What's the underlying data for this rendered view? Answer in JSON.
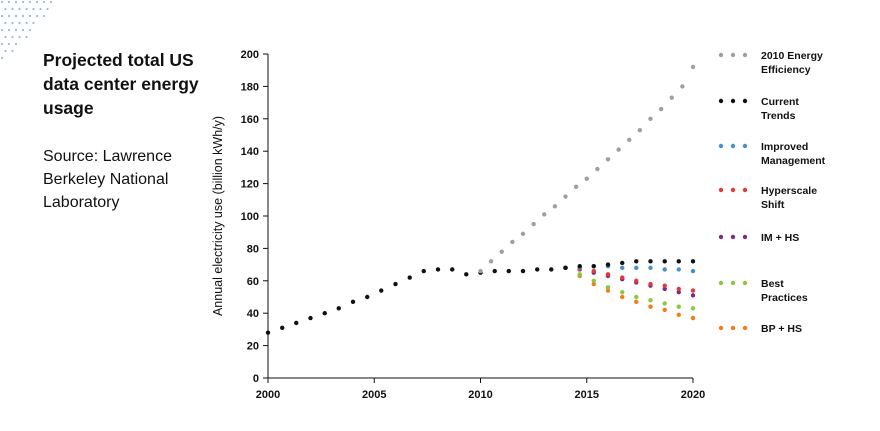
{
  "title": "Projected total US data center energy usage",
  "source": "Source: Lawrence Berkeley National Laboratory",
  "chart_data": {
    "type": "scatter",
    "ylabel": "Annual electricity use (billion kWh/y)",
    "xlabel": "",
    "xlim": [
      2000,
      2020
    ],
    "ylim": [
      0,
      200
    ],
    "xticks": [
      2000,
      2005,
      2010,
      2015,
      2020
    ],
    "yticks": [
      0,
      20,
      40,
      60,
      80,
      100,
      120,
      140,
      160,
      180,
      200
    ],
    "grid": false,
    "legend": "right",
    "series": [
      {
        "name": "2010 Energy Efficiency",
        "color": "#a0a0a0",
        "x": [
          2010,
          2010.5,
          2011,
          2011.5,
          2012,
          2012.5,
          2013,
          2013.5,
          2014,
          2014.5,
          2015,
          2015.5,
          2016,
          2016.5,
          2017,
          2017.5,
          2018,
          2018.5,
          2019,
          2019.5,
          2020
        ],
        "y": [
          66,
          72,
          78,
          84,
          89,
          95,
          101,
          106,
          112,
          118,
          123,
          129,
          135,
          141,
          147,
          153,
          160,
          166,
          173,
          180,
          192
        ]
      },
      {
        "name": "Current Trends",
        "color": "#111111",
        "x": [
          2000,
          2000.67,
          2001.33,
          2002,
          2002.67,
          2003.33,
          2004,
          2004.67,
          2005.33,
          2006,
          2006.67,
          2007.33,
          2008,
          2008.67,
          2009.33,
          2010,
          2010.67,
          2011.33,
          2012,
          2012.67,
          2013.33,
          2014,
          2014.67,
          2015.33,
          2016,
          2016.67,
          2017.33,
          2018,
          2018.67,
          2019.33,
          2020
        ],
        "y": [
          28,
          31,
          34,
          37,
          40,
          43,
          47,
          50,
          54,
          58,
          62,
          66,
          67,
          67,
          64,
          65,
          66,
          66,
          66,
          67,
          67,
          68,
          69,
          69,
          70,
          71,
          72,
          72,
          72,
          72,
          72
        ]
      },
      {
        "name": "Improved Management",
        "color": "#4a90c8",
        "x": [
          2014,
          2014.67,
          2015.33,
          2016,
          2016.67,
          2017.33,
          2018,
          2018.67,
          2019.33,
          2020
        ],
        "y": [
          68,
          68,
          69,
          69,
          68,
          68,
          68,
          67,
          67,
          66
        ]
      },
      {
        "name": "Hyperscale Shift",
        "color": "#e03a3a",
        "x": [
          2014,
          2014.67,
          2015.33,
          2016,
          2016.67,
          2017.33,
          2018,
          2018.67,
          2019.33,
          2020
        ],
        "y": [
          68,
          67,
          66,
          64,
          62,
          60,
          58,
          57,
          55,
          54
        ]
      },
      {
        "name": "IM + HS",
        "color": "#7b2d7e",
        "x": [
          2014,
          2014.67,
          2015.33,
          2016,
          2016.67,
          2017.33,
          2018,
          2018.67,
          2019.33,
          2020
        ],
        "y": [
          68,
          67,
          65,
          63,
          61,
          59,
          57,
          55,
          53,
          51
        ]
      },
      {
        "name": "Best Practices",
        "color": "#8cc63f",
        "x": [
          2014,
          2014.67,
          2015.33,
          2016,
          2016.67,
          2017.33,
          2018,
          2018.67,
          2019.33,
          2020
        ],
        "y": [
          68,
          64,
          60,
          56,
          53,
          50,
          48,
          46,
          44,
          43
        ]
      },
      {
        "name": "BP + HS",
        "color": "#f07c1b",
        "x": [
          2014,
          2014.67,
          2015.33,
          2016,
          2016.67,
          2017.33,
          2018,
          2018.67,
          2019.33,
          2020
        ],
        "y": [
          68,
          63,
          58,
          54,
          50,
          47,
          44,
          42,
          39,
          37
        ]
      }
    ]
  }
}
